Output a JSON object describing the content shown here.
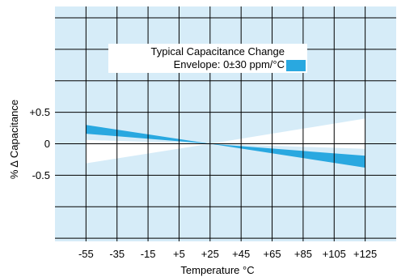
{
  "chart_data": {
    "type": "area",
    "xlabel": "Temperature °C",
    "ylabel": "% Δ Capacitance",
    "x_ticks": [
      -55,
      -35,
      -15,
      5,
      25,
      45,
      65,
      85,
      105,
      125
    ],
    "x_tick_labels": [
      "-55",
      "-35",
      "-15",
      "+5",
      "+25",
      "+45",
      "+65",
      "+85",
      "+105",
      "+125"
    ],
    "y_tick_labels": [
      {
        "value": 0.5,
        "label": "+0.5"
      },
      {
        "value": 0,
        "label": "0"
      },
      {
        "value": -0.5,
        "label": "-0.5"
      }
    ],
    "xlim": [
      -75,
      145
    ],
    "ylim": [
      -1.55,
      2.18
    ],
    "grid": true,
    "legend_position": "top-center",
    "legend": [
      {
        "label": "Typical Capacitance Change",
        "color": "#ffffff"
      },
      {
        "label": "Envelope: 0±30 ppm/°C",
        "color": "#29a8e0"
      }
    ],
    "series": [
      {
        "name": "Envelope: 0±30 ppm/°C",
        "x": [
          -55,
          25,
          125
        ],
        "y": [
          0.3,
          0.0,
          -0.38
        ]
      },
      {
        "name": "Envelope: 0±30 ppm/°C",
        "x": [
          -55,
          25,
          125
        ],
        "y": [
          0.16,
          0.0,
          -0.19
        ]
      },
      {
        "name": "Typical Capacitance Change",
        "x": [
          -55,
          25,
          125
        ],
        "y": [
          -0.31,
          0.0,
          0.4
        ]
      },
      {
        "name": "Typical Capacitance Change",
        "x": [
          -55,
          25,
          125
        ],
        "y": [
          0.06,
          0.0,
          -0.08
        ]
      }
    ]
  },
  "colors": {
    "plot_background": "#d6ecf8",
    "envelope": "#29a8e0",
    "typical": "#ffffff",
    "grid": "#000000"
  }
}
